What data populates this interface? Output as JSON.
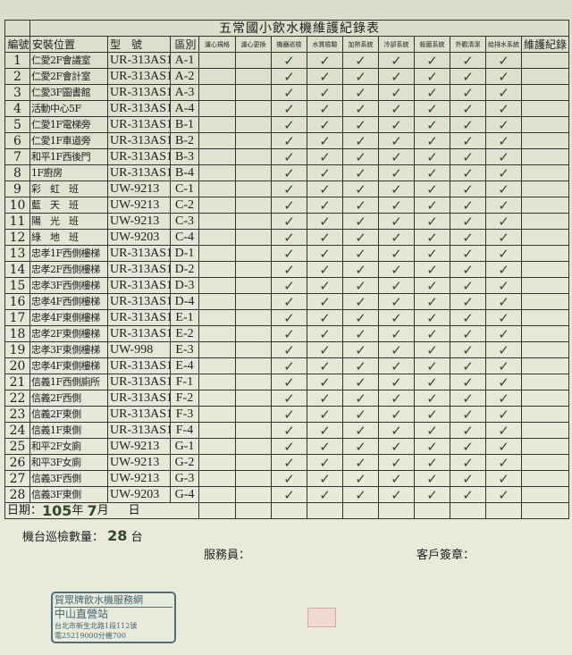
{
  "title": "五常國小飲水機維護紀錄表",
  "headers": [
    "編號",
    "安裝位置",
    "型　號",
    "區別",
    "濾心規格",
    "濾心更換",
    "機器巡檢",
    "水質檢驗",
    "加熱系統",
    "冷卻系統",
    "殺菌系統",
    "外觀清潔",
    "給排水系統",
    "維護紀錄"
  ],
  "check_mark": "✓",
  "check_color": "#2f4a2a",
  "rows": [
    [
      "1",
      "仁愛2F會議室",
      "UR-313AS1",
      "A-1"
    ],
    [
      "2",
      "仁愛2F會計室",
      "UR-313AS1",
      "A-2"
    ],
    [
      "3",
      "仁愛3F圖書館",
      "UR-313AS1",
      "A-3"
    ],
    [
      "4",
      "活動中心5F",
      "UR-313AS1",
      "A-4"
    ],
    [
      "5",
      "仁愛1F電梯旁",
      "UR-313AS1",
      "B-1"
    ],
    [
      "6",
      "仁愛1F車道旁",
      "UR-313AS1",
      "B-2"
    ],
    [
      "7",
      "和平1F西後門",
      "UR-313AS1",
      "B-3"
    ],
    [
      "8",
      "1F廚房",
      "UR-313AS1",
      "B-4"
    ],
    [
      "9",
      "彩　虹　班",
      "UW-9213",
      "C-1"
    ],
    [
      "10",
      "藍　天　班",
      "UW-9213",
      "C-2"
    ],
    [
      "11",
      "陽　光　班",
      "UW-9213",
      "C-3"
    ],
    [
      "12",
      "綠　地　班",
      "UW-9203",
      "C-4"
    ],
    [
      "13",
      "忠孝1F西側樓梯",
      "UR-313AS1",
      "D-1"
    ],
    [
      "14",
      "忠孝2F西側樓梯",
      "UR-313AS1",
      "D-2"
    ],
    [
      "15",
      "忠孝3F西側樓梯",
      "UR-313AS1",
      "D-3"
    ],
    [
      "16",
      "忠孝4F西側樓梯",
      "UR-313AS1",
      "D-4"
    ],
    [
      "17",
      "忠孝4F東側樓梯",
      "UR-313AS1",
      "E-1"
    ],
    [
      "18",
      "忠孝2F東側樓梯",
      "UR-313AS1",
      "E-2"
    ],
    [
      "19",
      "忠孝3F東側樓梯",
      "UW-998",
      "E-3"
    ],
    [
      "20",
      "忠孝4F東側樓梯",
      "UR-313AS1",
      "E-4"
    ],
    [
      "21",
      "信義1F西側廁所",
      "UR-313AS1",
      "F-1"
    ],
    [
      "22",
      "信義2F西側",
      "UR-313AS1",
      "F-2"
    ],
    [
      "23",
      "信義2F東側",
      "UR-313AS1",
      "F-3"
    ],
    [
      "24",
      "信義1F東側",
      "UR-313AS1",
      "F-4"
    ],
    [
      "25",
      "和平2F女廁",
      "UW-9213",
      "G-1"
    ],
    [
      "26",
      "和平3F女廁",
      "UW-9213",
      "G-2"
    ],
    [
      "27",
      "信義3F西側",
      "UW-9213",
      "G-3"
    ],
    [
      "28",
      "信義3F東側",
      "UW-9203",
      "G-4"
    ]
  ],
  "date": {
    "label": "日期：",
    "year": "105",
    "year_unit": "年",
    "month": "7",
    "month_unit": "月",
    "day_unit": "日"
  },
  "count": {
    "label": "機台巡檢數量：",
    "value": "28",
    "unit": "台"
  },
  "staff_label": "服務員：",
  "customer_label": "客戶簽章：",
  "stamp": [
    "賀眾牌飲水機服務網",
    "中山直營站",
    "台北市新生北路1段112號",
    "電25219000分機700"
  ]
}
